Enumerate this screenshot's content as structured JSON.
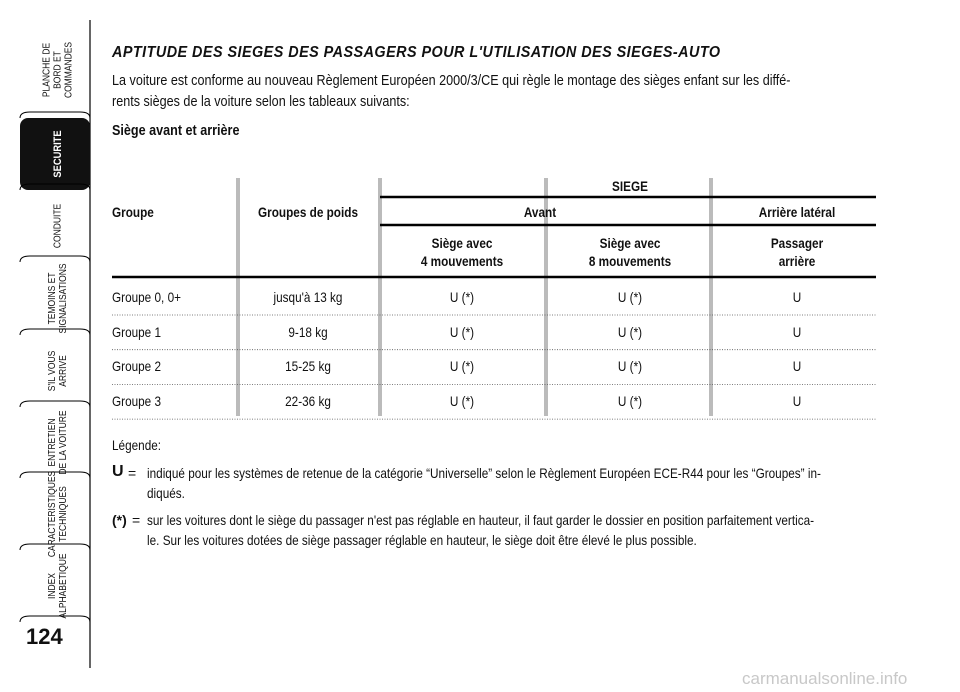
{
  "sidebar": {
    "tabs": [
      [
        "PLANCHE DE",
        "BORD ET",
        "COMMANDES"
      ],
      [
        "SECURITE"
      ],
      [
        "CONDUITE"
      ],
      [
        "TEMOINS ET",
        "SIGNALISATIONS"
      ],
      [
        "S'IL VOUS",
        "ARRIVE"
      ],
      [
        "ENTRETIEN",
        "DE LA VOITURE"
      ],
      [
        "CARACTERISTIQUES",
        "TECHNIQUES"
      ],
      [
        "INDEX",
        "ALPHABETIQUE"
      ]
    ],
    "page_number": "124"
  },
  "title": "APTITUDE DES SIEGES DES PASSAGERS POUR L'UTILISATION DES SIEGES-AUTO",
  "intro": [
    "La voiture est conforme au nouveau Règlement Européen 2000/3/CE qui règle le montage des sièges enfant sur les diffé-",
    "rents sièges de la voiture selon les tableaux suivants:"
  ],
  "subtitle": "Siège avant et arrière",
  "table": {
    "group_header": "SIEGE",
    "col_groups": [
      "Avant",
      "Arrière latéral"
    ],
    "columns": [
      "Groupe",
      "Groupes de poids",
      [
        "Siège avec",
        "4 mouvements"
      ],
      [
        "Siège avec",
        "8 mouvements"
      ],
      [
        "Passager",
        "arrière"
      ]
    ],
    "rows": [
      [
        "Groupe 0, 0+",
        "jusqu'à 13 kg",
        "U (*)",
        "U (*)",
        "U"
      ],
      [
        "Groupe 1",
        "9-18 kg",
        "U (*)",
        "U (*)",
        "U"
      ],
      [
        "Groupe 2",
        "15-25 kg",
        "U (*)",
        "U (*)",
        "U"
      ],
      [
        "Groupe 3",
        "22-36 kg",
        "U (*)",
        "U (*)",
        "U"
      ]
    ]
  },
  "legend": {
    "label": "Légende:",
    "items": [
      {
        "key": "U",
        "sep": "=",
        "lines": [
          "indiqué pour les systèmes de retenue de la catégorie “Universelle” selon le Règlement Européen ECE-R44 pour les “Groupes” in-",
          "diqués."
        ]
      },
      {
        "key": "(*)",
        "sep": "=",
        "lines": [
          "sur les voitures dont le siège du passager n'est pas réglable en hauteur, il faut garder le dossier en position parfaitement vertica-",
          "le. Sur les voitures dotées de siège passager réglable en hauteur, le siège doit être élevé le plus possible."
        ]
      }
    ]
  },
  "watermark": "carmanualsonline.info"
}
